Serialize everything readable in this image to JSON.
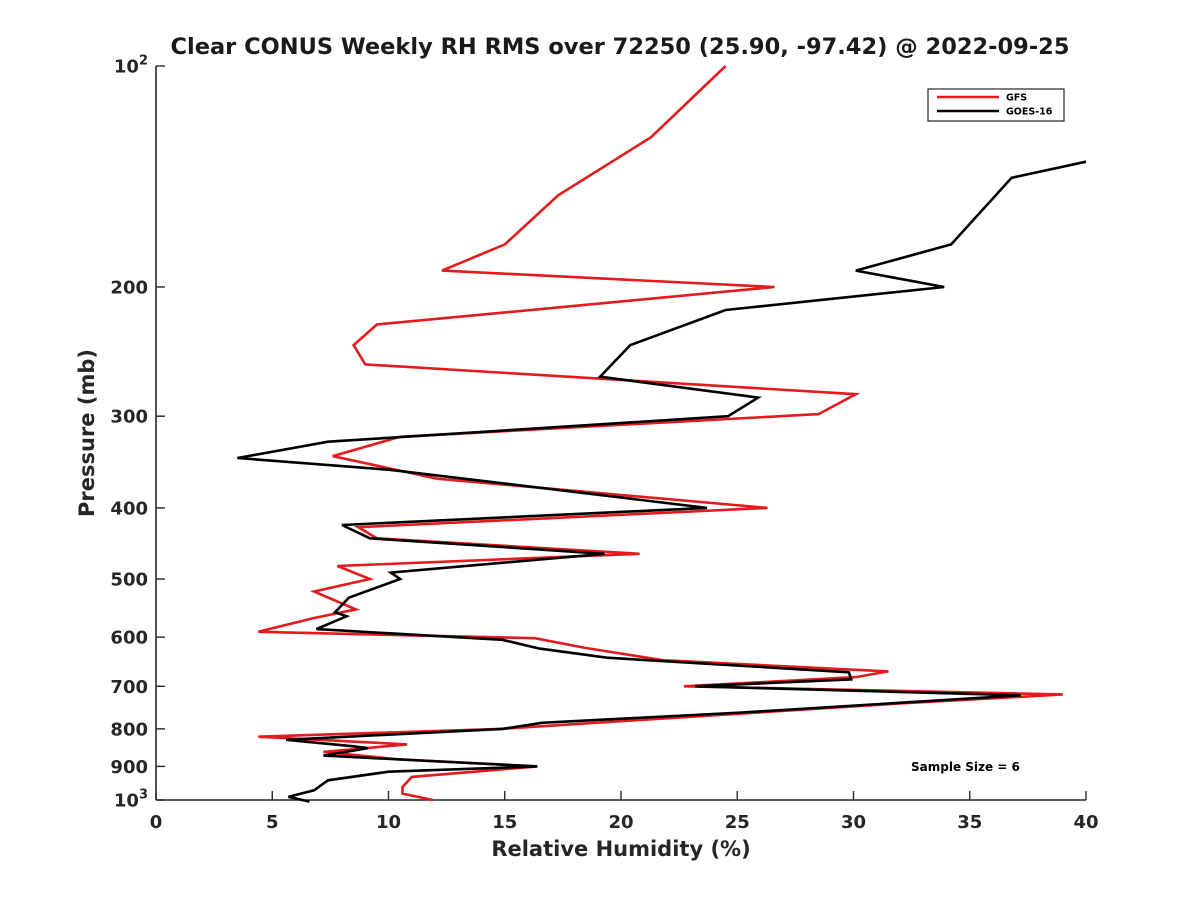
{
  "chart_data": {
    "type": "line",
    "title": "Clear CONUS Weekly RH RMS over 72250 (25.90, -97.42) @ 2022-09-25",
    "xlabel": "Relative Humidity (%)",
    "ylabel": "Pressure (mb)",
    "xlim": [
      0,
      40
    ],
    "ylim": [
      100,
      1000
    ],
    "yscale": "log",
    "y_reversed": true,
    "xticks": [
      0,
      5,
      10,
      15,
      20,
      25,
      30,
      35,
      40
    ],
    "yticks": [
      {
        "value": 100,
        "base": "10",
        "exp": "2"
      },
      {
        "value": 200,
        "label": "200"
      },
      {
        "value": 300,
        "label": "300"
      },
      {
        "value": 400,
        "label": "400"
      },
      {
        "value": 500,
        "label": "500"
      },
      {
        "value": 600,
        "label": "600"
      },
      {
        "value": 700,
        "label": "700"
      },
      {
        "value": 800,
        "label": "800"
      },
      {
        "value": 900,
        "label": "900"
      },
      {
        "value": 1000,
        "base": "10",
        "exp": "3"
      }
    ],
    "grid": false,
    "legend_position": "top-right",
    "annotation": "Sample Size = 6",
    "series": [
      {
        "name": "GFS",
        "color": "#e41a1c",
        "points": [
          [
            24.5,
            100
          ],
          [
            21.3,
            125
          ],
          [
            17.3,
            150
          ],
          [
            15.0,
            175
          ],
          [
            12.3,
            190
          ],
          [
            26.6,
            200
          ],
          [
            9.5,
            225
          ],
          [
            8.5,
            240
          ],
          [
            9.0,
            255
          ],
          [
            30.1,
            280
          ],
          [
            28.5,
            298
          ],
          [
            10.5,
            320
          ],
          [
            7.6,
            340
          ],
          [
            12.1,
            365
          ],
          [
            26.3,
            400
          ],
          [
            8.7,
            425
          ],
          [
            9.5,
            440
          ],
          [
            20.8,
            462
          ],
          [
            7.8,
            480
          ],
          [
            9.2,
            500
          ],
          [
            6.8,
            520
          ],
          [
            8.6,
            550
          ],
          [
            6.8,
            565
          ],
          [
            4.4,
            590
          ],
          [
            16.3,
            602
          ],
          [
            18.4,
            620
          ],
          [
            21.8,
            645
          ],
          [
            31.5,
            668
          ],
          [
            30.1,
            680
          ],
          [
            22.7,
            700
          ],
          [
            39.0,
            718
          ],
          [
            31.6,
            740
          ],
          [
            14.8,
            800
          ],
          [
            4.4,
            820
          ],
          [
            10.8,
            840
          ],
          [
            7.2,
            860
          ],
          [
            10.4,
            880
          ],
          [
            16.4,
            900
          ],
          [
            11.0,
            930
          ],
          [
            10.6,
            960
          ],
          [
            10.6,
            980
          ],
          [
            11.9,
            1000
          ]
        ]
      },
      {
        "name": "GOES-16",
        "color": "#000000",
        "points": [
          [
            40.0,
            135
          ],
          [
            36.8,
            142
          ],
          [
            34.2,
            175
          ],
          [
            30.1,
            190
          ],
          [
            33.9,
            200
          ],
          [
            24.5,
            215
          ],
          [
            20.4,
            240
          ],
          [
            19.1,
            265
          ],
          [
            25.9,
            283
          ],
          [
            24.6,
            300
          ],
          [
            7.4,
            325
          ],
          [
            3.5,
            342
          ],
          [
            10.1,
            355
          ],
          [
            23.7,
            400
          ],
          [
            8.0,
            422
          ],
          [
            9.2,
            440
          ],
          [
            19.3,
            462
          ],
          [
            10.1,
            490
          ],
          [
            10.5,
            500
          ],
          [
            8.3,
            530
          ],
          [
            7.7,
            555
          ],
          [
            8.2,
            562
          ],
          [
            6.9,
            585
          ],
          [
            14.9,
            605
          ],
          [
            16.5,
            622
          ],
          [
            19.4,
            640
          ],
          [
            29.8,
            670
          ],
          [
            29.9,
            685
          ],
          [
            23.2,
            700
          ],
          [
            37.2,
            720
          ],
          [
            25.2,
            760
          ],
          [
            16.6,
            785
          ],
          [
            14.9,
            800
          ],
          [
            5.6,
            828
          ],
          [
            8.5,
            845
          ],
          [
            9.1,
            850
          ],
          [
            7.2,
            870
          ],
          [
            16.4,
            900
          ],
          [
            10.0,
            915
          ],
          [
            7.4,
            940
          ],
          [
            7.2,
            950
          ],
          [
            6.8,
            970
          ],
          [
            5.7,
            990
          ],
          [
            6.6,
            1005
          ]
        ]
      }
    ]
  }
}
